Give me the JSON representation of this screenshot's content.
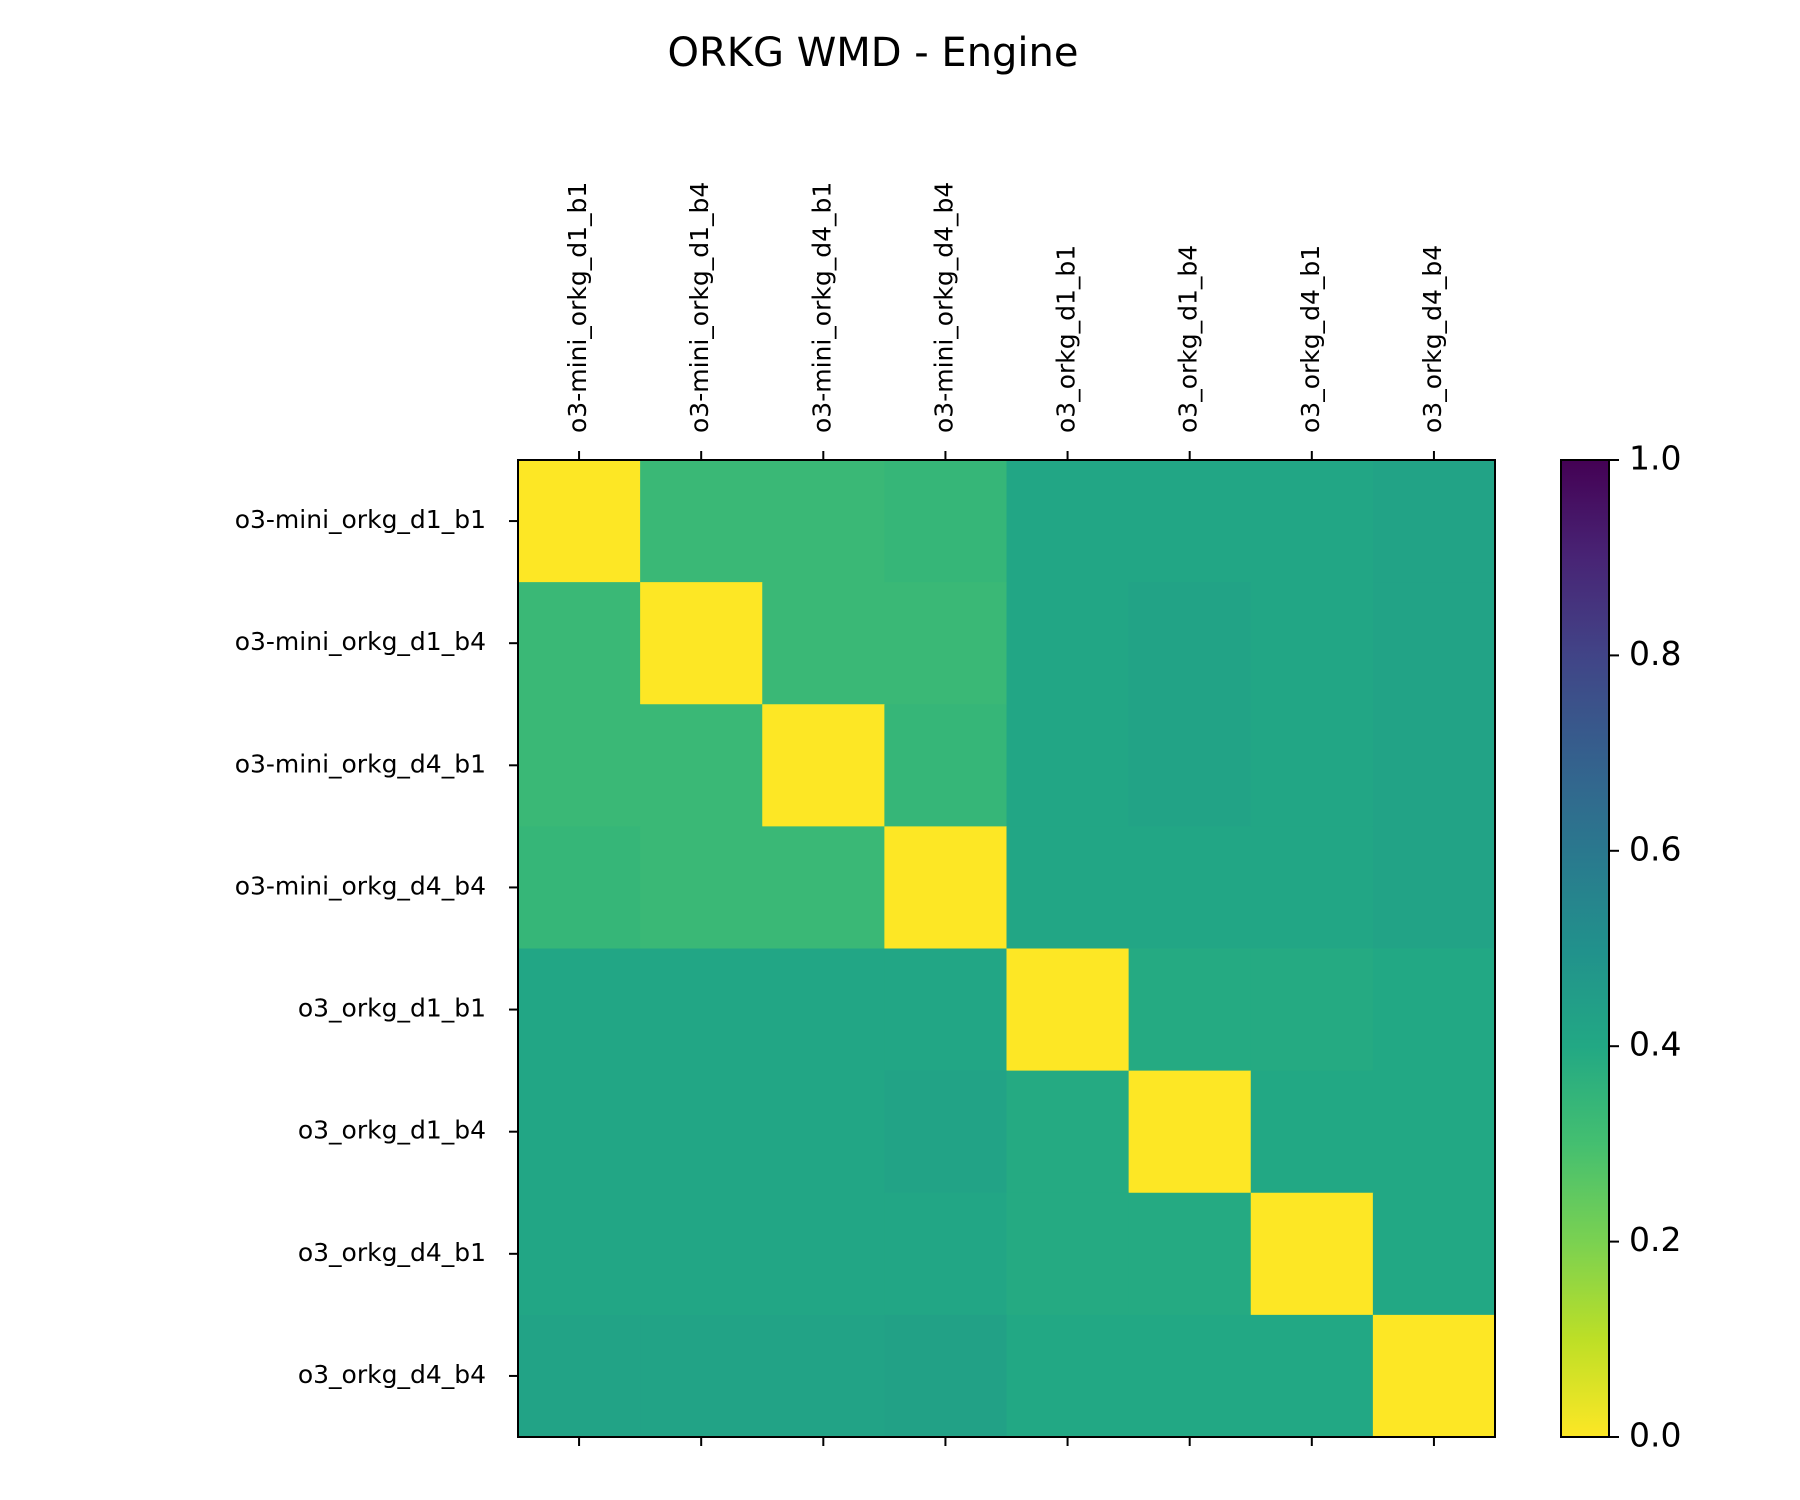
{
  "chart_data": {
    "type": "heatmap",
    "title": "ORKG WMD - Engine",
    "x_categories": [
      "o3-mini_orkg_d1_b1",
      "o3-mini_orkg_d1_b4",
      "o3-mini_orkg_d4_b1",
      "o3-mini_orkg_d4_b4",
      "o3_orkg_d1_b1",
      "o3_orkg_d1_b4",
      "o3_orkg_d4_b1",
      "o3_orkg_d4_b4"
    ],
    "y_categories": [
      "o3-mini_orkg_d1_b1",
      "o3-mini_orkg_d1_b4",
      "o3-mini_orkg_d4_b1",
      "o3-mini_orkg_d4_b4",
      "o3_orkg_d1_b1",
      "o3_orkg_d1_b4",
      "o3_orkg_d4_b1",
      "o3_orkg_d4_b4"
    ],
    "values": [
      [
        0.0,
        0.33,
        0.33,
        0.34,
        0.41,
        0.41,
        0.41,
        0.42
      ],
      [
        0.33,
        0.0,
        0.33,
        0.33,
        0.41,
        0.42,
        0.41,
        0.42
      ],
      [
        0.33,
        0.33,
        0.0,
        0.34,
        0.41,
        0.42,
        0.41,
        0.42
      ],
      [
        0.34,
        0.33,
        0.33,
        0.0,
        0.41,
        0.41,
        0.41,
        0.42
      ],
      [
        0.41,
        0.41,
        0.41,
        0.41,
        0.0,
        0.39,
        0.39,
        0.4
      ],
      [
        0.41,
        0.41,
        0.41,
        0.42,
        0.39,
        0.0,
        0.4,
        0.4
      ],
      [
        0.41,
        0.41,
        0.41,
        0.41,
        0.39,
        0.39,
        0.0,
        0.4
      ],
      [
        0.42,
        0.42,
        0.42,
        0.43,
        0.4,
        0.4,
        0.4,
        0.0
      ]
    ],
    "colormap": "viridis_r",
    "vmin": 0.0,
    "vmax": 1.0,
    "colorbar": {
      "ticks": [
        0.0,
        0.2,
        0.4,
        0.6,
        0.8,
        1.0
      ],
      "tick_labels": [
        "0.0",
        "0.2",
        "0.4",
        "0.6",
        "0.8",
        "1.0"
      ],
      "position": "right"
    },
    "x_tick_position": "top",
    "grid": false
  }
}
